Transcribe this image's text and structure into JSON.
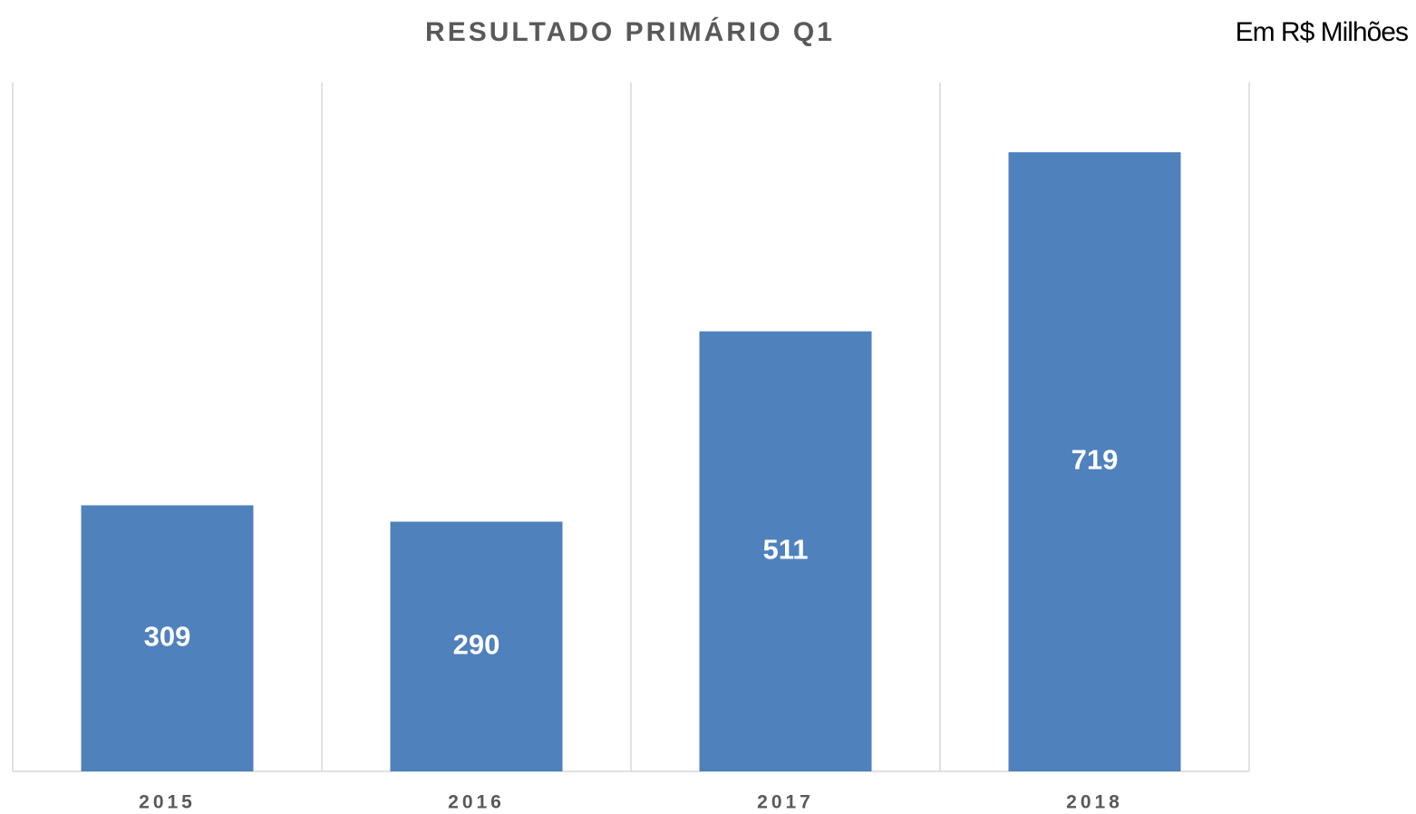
{
  "chart_data": {
    "type": "bar",
    "title": "RESULTADO PRIMÁRIO Q1",
    "subtitle": "Em R$ Milhões",
    "categories": [
      "2015",
      "2016",
      "2017",
      "2018"
    ],
    "values": [
      309,
      290,
      511,
      719
    ],
    "color": "#4f81bd",
    "ylim": [
      0,
      800
    ],
    "grid": true
  }
}
